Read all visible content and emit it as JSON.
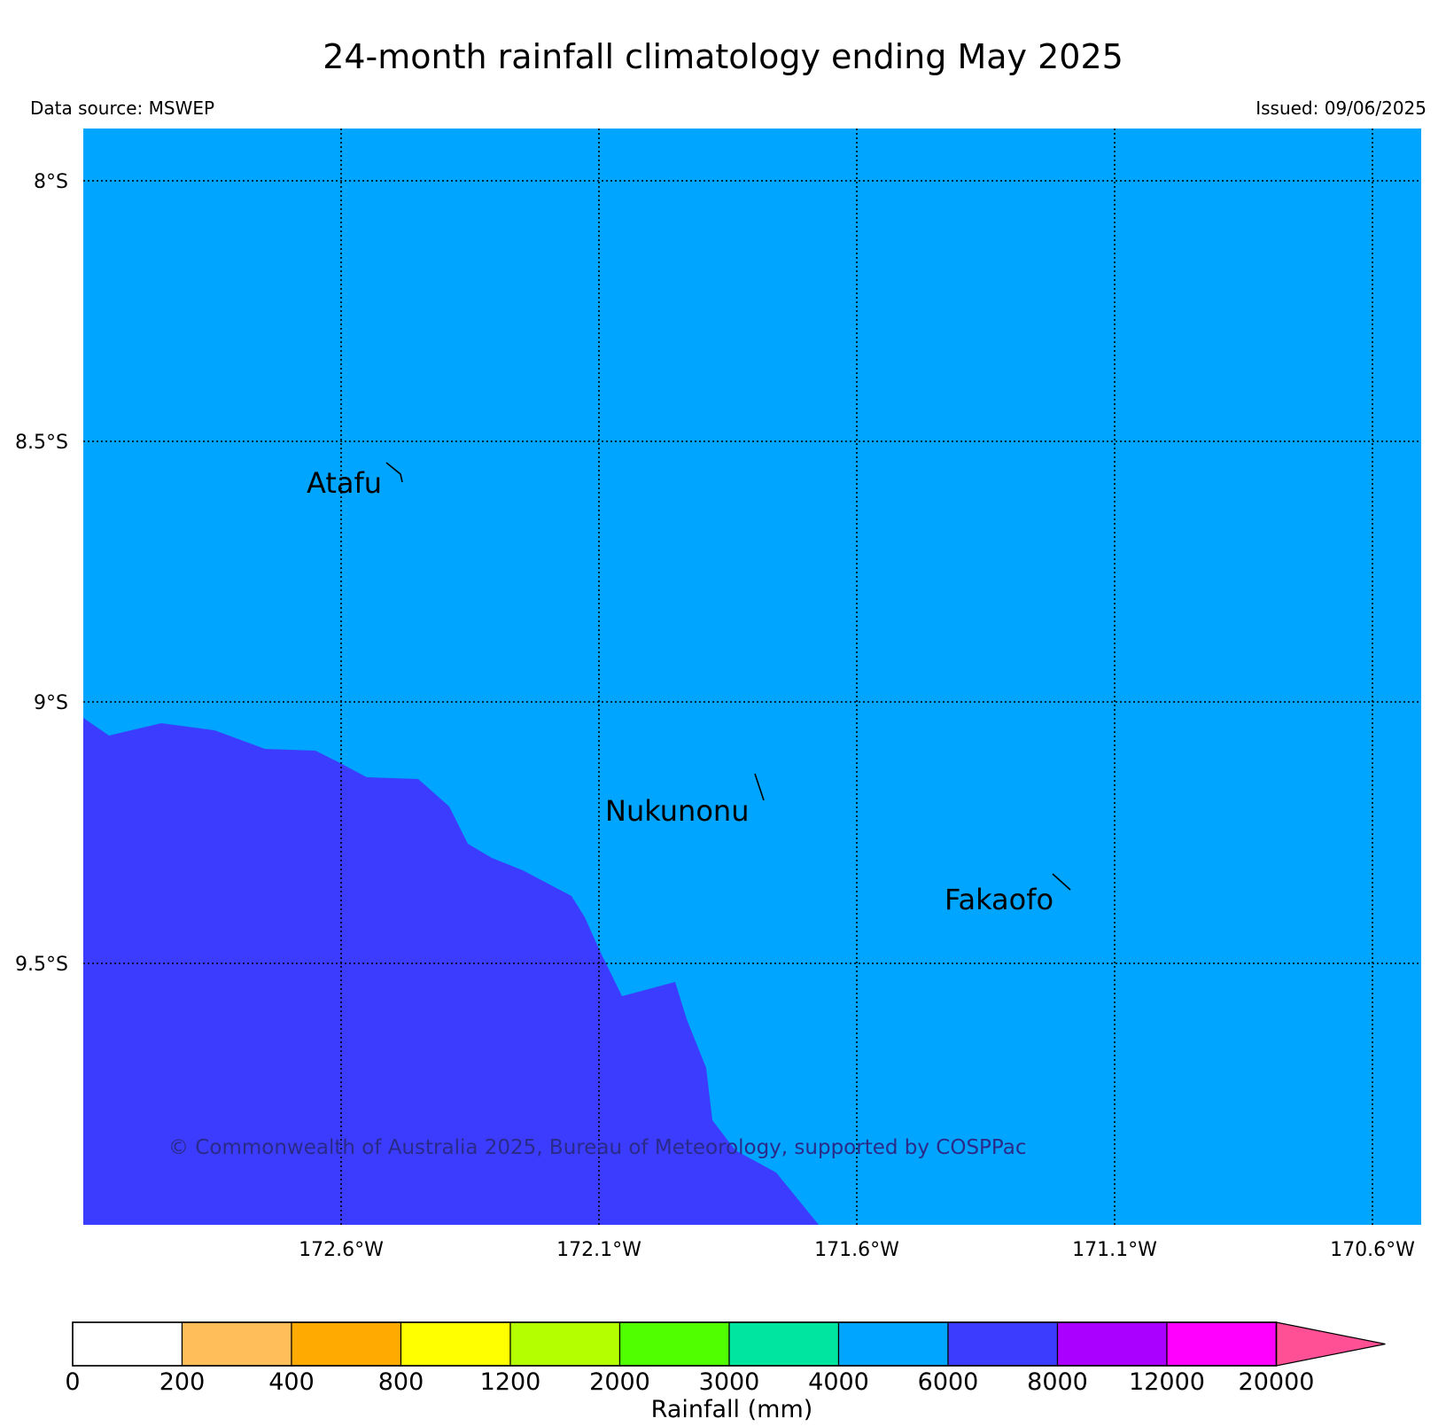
{
  "title": "24-month rainfall climatology ending May 2025",
  "data_source": "Data source: MSWEP",
  "issued": "Issued: 09/06/2025",
  "copyright": "© Commonwealth of Australia 2025, Bureau of Meteorology, supported by COSPPac",
  "map": {
    "lat_ticks": [
      "8°S",
      "8.5°S",
      "9°S",
      "9.5°S"
    ],
    "lon_ticks": [
      "172.6°W",
      "172.1°W",
      "171.6°W",
      "171.1°W",
      "170.6°W"
    ],
    "places": [
      "Atafu",
      "Nukunonu",
      "Fakaofo"
    ],
    "fill_regions": [
      {
        "range": "4000-6000 mm",
        "color": "#00a5ff"
      },
      {
        "range": "6000-8000 mm",
        "color": "#3c3cff"
      }
    ]
  },
  "colorbar": {
    "label": "Rainfall (mm)",
    "bounds": [
      "0",
      "200",
      "400",
      "800",
      "1200",
      "2000",
      "3000",
      "4000",
      "6000",
      "8000",
      "12000",
      "20000"
    ],
    "colors": [
      "#ffffff",
      "#ffbe5a",
      "#ffaa00",
      "#ffff00",
      "#b4ff00",
      "#50ff00",
      "#00e6a0",
      "#00a5ff",
      "#3c3cff",
      "#aa00ff",
      "#ff00ff",
      "#ff5096"
    ]
  }
}
